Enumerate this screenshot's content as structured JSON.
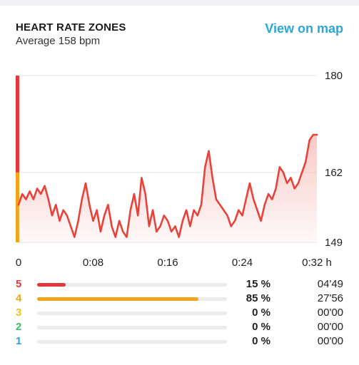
{
  "header": {
    "title": "HEART RATE ZONES",
    "subtitle": "Average 158 bpm",
    "view_map_label": "View on map"
  },
  "chart_data": {
    "type": "area",
    "x_unit": "minutes",
    "xlim": [
      0,
      32
    ],
    "ylim": [
      149,
      180
    ],
    "x_tick_labels": [
      "0",
      "0:08",
      "0:16",
      "0:24",
      "0:32 h"
    ],
    "x_tick_values": [
      0,
      8,
      16,
      24,
      32
    ],
    "y_tick_labels": [
      "180",
      "162",
      "149"
    ],
    "y_tick_values": [
      180,
      162,
      149
    ],
    "grid": true,
    "line_color": "#e8433b",
    "fill_color": "#f7c6c2",
    "zone_band": [
      {
        "zone": 5,
        "from": 162,
        "to": 180,
        "color": "#e5363b"
      },
      {
        "zone": 4,
        "from": 149,
        "to": 162,
        "color": "#f2a516"
      }
    ],
    "x": [
      0,
      0.4,
      0.8,
      1.2,
      1.6,
      2,
      2.4,
      2.8,
      3.2,
      3.6,
      4,
      4.4,
      4.8,
      5.2,
      5.6,
      6,
      6.4,
      6.8,
      7.2,
      7.6,
      8,
      8.4,
      8.8,
      9.2,
      9.6,
      10,
      10.4,
      10.8,
      11.2,
      11.6,
      12,
      12.4,
      12.8,
      13.2,
      13.6,
      14,
      14.4,
      14.8,
      15.2,
      15.6,
      16,
      16.4,
      16.8,
      17.2,
      17.6,
      18,
      18.4,
      18.8,
      19.2,
      19.6,
      20,
      20.4,
      20.8,
      21.2,
      21.6,
      22,
      22.4,
      22.8,
      23.2,
      23.6,
      24,
      24.4,
      24.8,
      25.2,
      25.6,
      26,
      26.4,
      26.8,
      27.2,
      27.6,
      28,
      28.4,
      28.8,
      29.2,
      29.6,
      30,
      30.4,
      30.8,
      31.2,
      31.6,
      32
    ],
    "values": [
      156,
      158,
      157,
      158.5,
      157,
      159,
      158,
      159.5,
      157,
      154,
      156,
      153,
      155,
      154,
      152,
      150,
      153,
      157,
      160,
      156,
      153,
      155,
      151,
      154,
      156,
      152,
      150,
      153,
      151,
      150,
      155,
      158,
      154,
      161,
      158,
      152,
      155,
      151,
      152,
      154,
      153,
      151,
      152,
      150,
      153,
      155,
      152,
      155,
      154,
      156,
      163,
      166,
      161,
      157,
      156,
      155,
      154,
      152,
      153,
      155,
      154,
      157,
      160,
      157,
      155,
      153,
      156,
      158,
      157,
      159,
      163,
      162,
      160,
      161,
      159,
      160,
      162,
      164,
      168,
      169,
      169
    ]
  },
  "zones": [
    {
      "label": "5",
      "color": "#e5363b",
      "percent": 15,
      "percent_label": "15 %",
      "time": "04'49"
    },
    {
      "label": "4",
      "color": "#f2a516",
      "percent": 85,
      "percent_label": "85 %",
      "time": "27'56"
    },
    {
      "label": "3",
      "color": "#f2c614",
      "percent": 0,
      "percent_label": "0 %",
      "time": "00'00"
    },
    {
      "label": "2",
      "color": "#35c06b",
      "percent": 0,
      "percent_label": "0 %",
      "time": "00'00"
    },
    {
      "label": "1",
      "color": "#2aa0d8",
      "percent": 0,
      "percent_label": "0 %",
      "time": "00'00"
    }
  ]
}
